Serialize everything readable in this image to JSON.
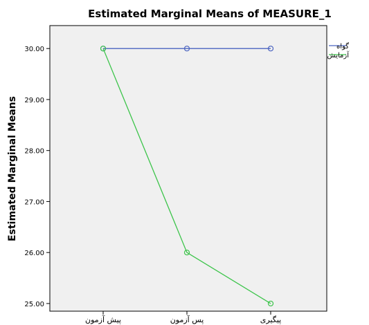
{
  "chart_data": {
    "type": "line",
    "title": "Estimated Marginal Means of MEASURE_1",
    "xlabel": "",
    "ylabel": "Estimated Marginal Means",
    "categories": [
      "پیش آزمون",
      "پس آزمون",
      "پیگیری"
    ],
    "ylim": [
      24.85,
      30.45
    ],
    "y_ticks": [
      25,
      26,
      27,
      28,
      29,
      30
    ],
    "y_tick_labels": [
      "25.00",
      "26.00",
      "27.00",
      "28.00",
      "29.00",
      "30.00"
    ],
    "grid": false,
    "legend_position": "right",
    "series": [
      {
        "name": "گواه",
        "color": "#4a63c0",
        "values": [
          30.0,
          30.0,
          30.0
        ]
      },
      {
        "name": "آزمایش",
        "color": "#3cc44a",
        "values": [
          30.0,
          26.0,
          25.0
        ]
      }
    ],
    "plot_background": "#f0f0f0"
  }
}
